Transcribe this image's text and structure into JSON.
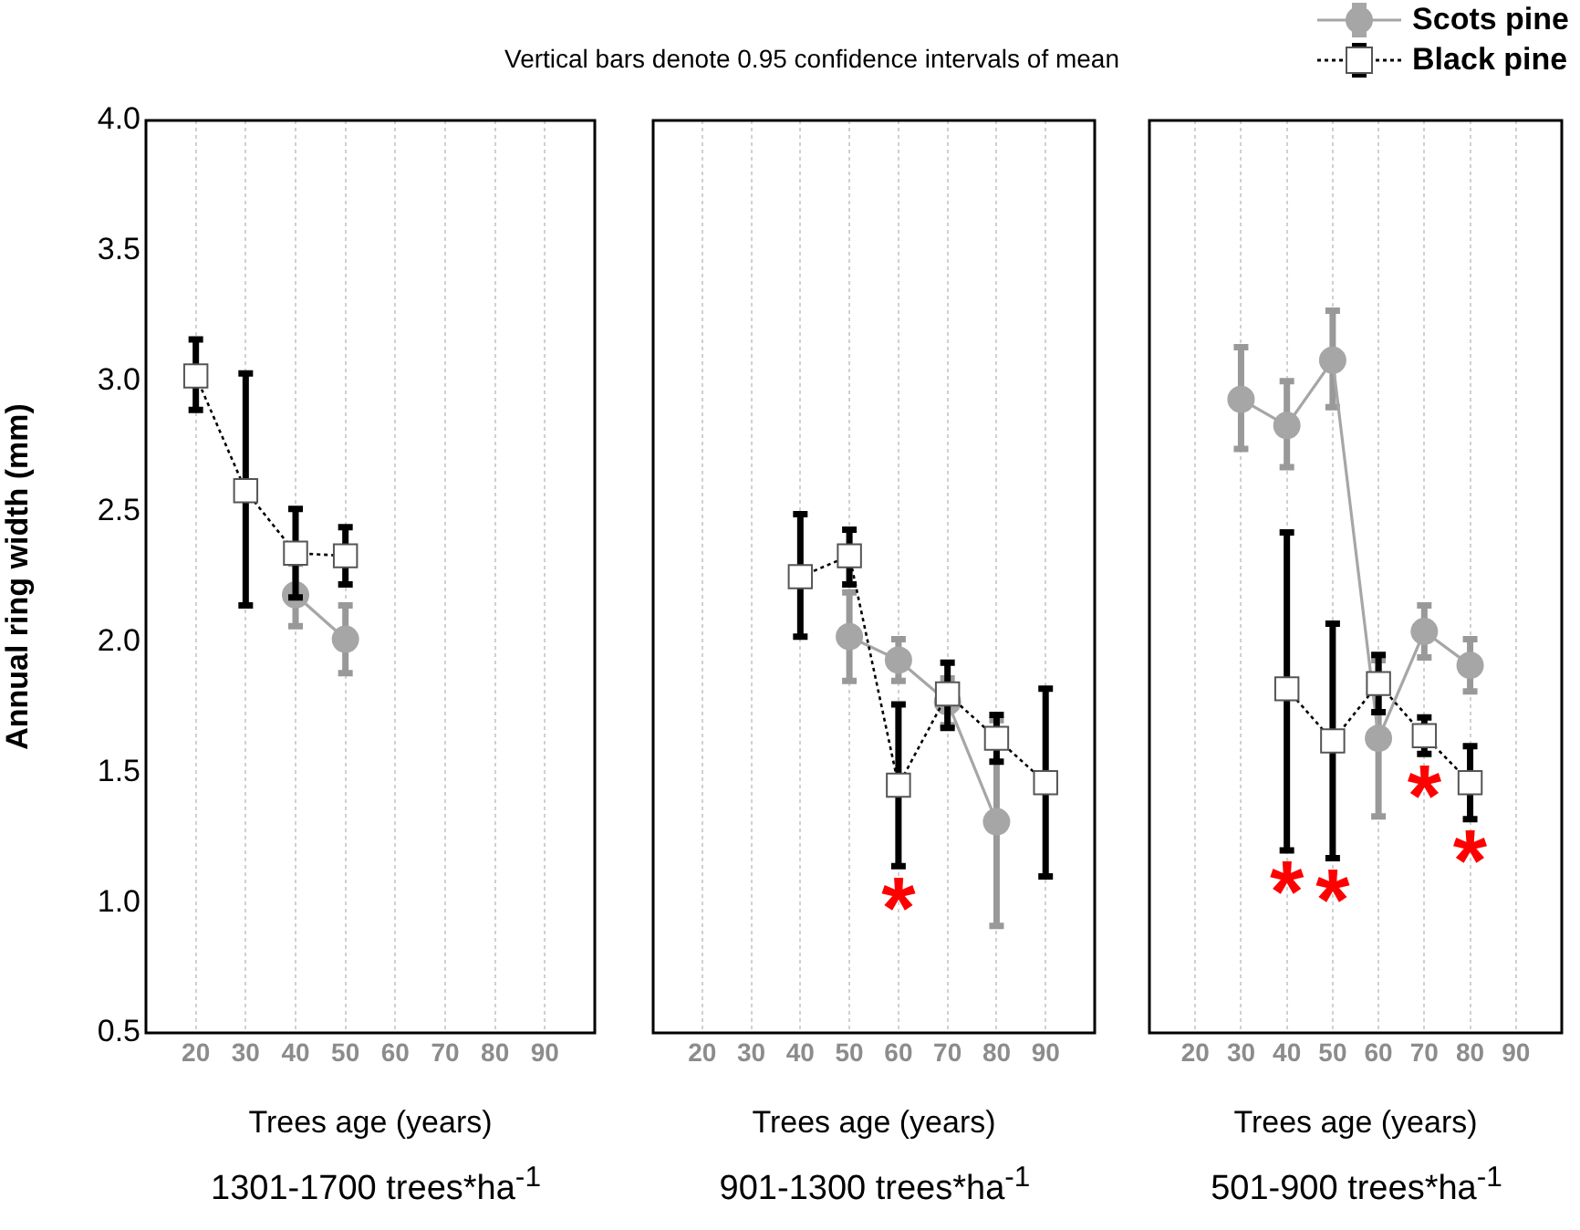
{
  "chart_data": [
    {
      "type": "line",
      "title": "1301-1700 trees*ha$^{-1}$",
      "xlabel": "Trees age (years)",
      "ylabel": "Annual ring width (mm)",
      "annotations": [
        "Vertical bars denote 0.95 confidence intervals of mean"
      ],
      "xlim": [
        10,
        100
      ],
      "xticks": [
        20,
        30,
        40,
        50,
        60,
        70,
        80,
        90
      ],
      "ylim": [
        0.5,
        4.0
      ],
      "yticks": [
        {
          "value": 0.5,
          "label": "0.5"
        },
        {
          "value": 1,
          "label": "1.0"
        },
        {
          "value": 1.5,
          "label": "1.5"
        },
        {
          "value": 2,
          "label": "2.0"
        },
        {
          "value": 2.5,
          "label": "2.5"
        },
        {
          "value": 3,
          "label": "3.0"
        },
        {
          "value": 3.5,
          "label": "3.5"
        },
        {
          "value": 4,
          "label": "4.0"
        }
      ],
      "grid": "x",
      "legend": false,
      "series": [
        {
          "color": "#a6a6a6",
          "marker": "circle",
          "line_style": "solid",
          "x": [
            40,
            50
          ],
          "values": [
            2.18,
            2.01
          ],
          "errors": [
            [
              2.06,
              2.3
            ],
            [
              1.88,
              2.14
            ]
          ]
        },
        {
          "color": "#000000",
          "marker": "square",
          "line_style": "dotted",
          "x": [
            20,
            30,
            40,
            50
          ],
          "values": [
            3.02,
            2.58,
            2.34,
            2.33
          ],
          "errors": [
            [
              2.89,
              3.16
            ],
            [
              2.14,
              3.03
            ],
            [
              2.17,
              2.51
            ],
            [
              2.22,
              2.44
            ]
          ]
        }
      ]
    },
    {
      "type": "line",
      "title": "901-1300 trees*ha$^{-1}$",
      "xlabel": "Trees age (years)",
      "xlim": [
        10,
        100
      ],
      "xticks": [
        20,
        30,
        40,
        50,
        60,
        70,
        80,
        90
      ],
      "ylim": [
        0.5,
        4.0
      ],
      "tick_labels": "x",
      "grid": "x",
      "legend": false,
      "annotations": [
        {
          "text": "*",
          "x": 60,
          "y": 1.14
        }
      ],
      "series": [
        {
          "color": "#a6a6a6",
          "marker": "circle",
          "line_style": "solid",
          "x": [
            50,
            60,
            70,
            80
          ],
          "values": [
            2.02,
            1.93,
            1.77,
            1.31
          ],
          "errors": [
            [
              1.85,
              2.19
            ],
            [
              1.85,
              2.01
            ],
            [
              1.68,
              1.86
            ],
            [
              0.91,
              1.7
            ]
          ]
        },
        {
          "color": "#000000",
          "marker": "square",
          "line_style": "dotted",
          "x": [
            40,
            50,
            60,
            70,
            80,
            90
          ],
          "values": [
            2.25,
            2.33,
            1.45,
            1.8,
            1.63,
            1.46
          ],
          "errors": [
            [
              2.02,
              2.49
            ],
            [
              2.22,
              2.43
            ],
            [
              1.14,
              1.76
            ],
            [
              1.67,
              1.92
            ],
            [
              1.54,
              1.72
            ],
            [
              1.1,
              1.82
            ]
          ]
        }
      ]
    },
    {
      "type": "line",
      "title": "501-900 trees*ha$^{-1}$",
      "xlabel": "Trees age (years)",
      "xlim": [
        10,
        100
      ],
      "xticks": [
        20,
        30,
        40,
        50,
        60,
        70,
        80,
        90
      ],
      "ylim": [
        0.5,
        4.0
      ],
      "tick_labels": "x",
      "grid": "x",
      "legend": "top right",
      "annotations": [
        {
          "text": "*",
          "x": 40,
          "y": 1.2
        },
        {
          "text": "*",
          "x": 50,
          "y": 1.17
        },
        {
          "text": "*",
          "x": 70,
          "y": 1.57
        },
        {
          "text": "*",
          "x": 80,
          "y": 1.32
        }
      ],
      "series": [
        {
          "name": "Scots pine",
          "color": "#a6a6a6",
          "marker": "circle",
          "line_style": "solid",
          "x": [
            30,
            40,
            50,
            60,
            70,
            80
          ],
          "values": [
            2.93,
            2.83,
            3.08,
            1.63,
            2.04,
            1.91
          ],
          "errors": [
            [
              2.74,
              3.13
            ],
            [
              2.67,
              3.0
            ],
            [
              2.9,
              3.27
            ],
            [
              1.33,
              1.93
            ],
            [
              1.94,
              2.14
            ],
            [
              1.81,
              2.01
            ]
          ]
        },
        {
          "name": "Black pine",
          "color": "#000000",
          "marker": "square",
          "line_style": "dotted",
          "x": [
            40,
            50,
            60,
            70,
            80
          ],
          "values": [
            1.82,
            1.62,
            1.84,
            1.64,
            1.46
          ],
          "errors": [
            [
              1.2,
              2.42
            ],
            [
              1.17,
              2.07
            ],
            [
              1.73,
              1.95
            ],
            [
              1.57,
              1.71
            ],
            [
              1.32,
              1.6
            ]
          ]
        }
      ]
    }
  ]
}
